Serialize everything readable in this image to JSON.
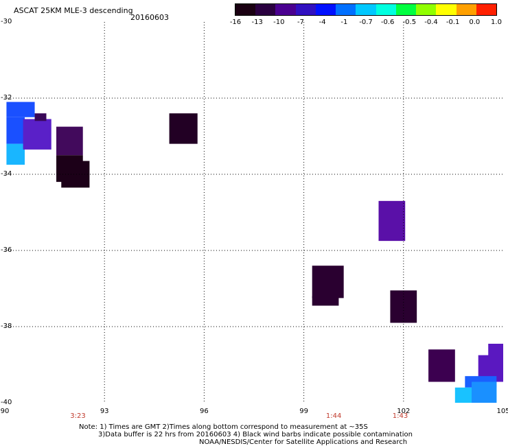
{
  "header": {
    "title": "ASCAT 25KM MLE-3 descending",
    "date": "20160603"
  },
  "colorbar": {
    "ticks": [
      "-16",
      "-13",
      "-10",
      "-7",
      "-4",
      "-1",
      "-0.7",
      "-0.6",
      "-0.5",
      "-0.4",
      "-0.1",
      "0.0",
      "1.0"
    ],
    "colors": [
      "#1a0012",
      "#2a0040",
      "#4a0090",
      "#3010c0",
      "#0010ff",
      "#0070ff",
      "#00c8ff",
      "#00ffe0",
      "#00ff40",
      "#90ff00",
      "#ffff00",
      "#ffa000",
      "#ff2000"
    ]
  },
  "axes": {
    "lat_ticks": [
      "-30",
      "-32",
      "-34",
      "-36",
      "-38",
      "-40"
    ],
    "lon_ticks": [
      "90",
      "93",
      "96",
      "99",
      "102",
      "105"
    ],
    "lat_range": [
      -30,
      -40
    ],
    "lon_range": [
      90,
      105
    ]
  },
  "pass_times": [
    {
      "lon": 92.2,
      "label": "3:23"
    },
    {
      "lon": 99.9,
      "label": "1:44"
    },
    {
      "lon": 101.9,
      "label": "1:43"
    }
  ],
  "notes": {
    "line1": "Note: 1) Times are GMT 2)Times along bottom correspond to measurement at ~35S",
    "line2": "3)Data buffer is 22 hrs from 20160603 4) Black wind barbs indicate possible contamination",
    "line3": "NOAA/NESDIS/Center for Satellite Applications and Research"
  },
  "patches": [
    {
      "lon0": 90.05,
      "lon1": 90.9,
      "lat0": -32.1,
      "lat1": -32.5,
      "color": "#1a50ff"
    },
    {
      "lon0": 90.05,
      "lon1": 90.6,
      "lat0": -32.5,
      "lat1": -33.2,
      "color": "#1a50ff"
    },
    {
      "lon0": 90.05,
      "lon1": 90.6,
      "lat0": -33.2,
      "lat1": -33.75,
      "color": "#19b6ff"
    },
    {
      "lon0": 90.55,
      "lon1": 91.4,
      "lat0": -32.55,
      "lat1": -33.35,
      "color": "#5a20c8"
    },
    {
      "lon0": 90.9,
      "lon1": 91.25,
      "lat0": -32.4,
      "lat1": -32.6,
      "color": "#3a0858"
    },
    {
      "lon0": 91.55,
      "lon1": 92.35,
      "lat0": -32.75,
      "lat1": -33.5,
      "color": "#420a5c"
    },
    {
      "lon0": 91.55,
      "lon1": 92.35,
      "lat0": -33.5,
      "lat1": -34.2,
      "color": "#1c0018"
    },
    {
      "lon0": 91.7,
      "lon1": 92.55,
      "lat0": -33.65,
      "lat1": -34.35,
      "color": "#1c0018"
    },
    {
      "lon0": 94.95,
      "lon1": 95.8,
      "lat0": -32.4,
      "lat1": -33.2,
      "color": "#220024"
    },
    {
      "lon0": 101.25,
      "lon1": 102.05,
      "lat0": -34.7,
      "lat1": -35.75,
      "color": "#5a10a8"
    },
    {
      "lon0": 99.25,
      "lon1": 100.2,
      "lat0": -36.4,
      "lat1": -37.25,
      "color": "#2a0030"
    },
    {
      "lon0": 99.25,
      "lon1": 100.05,
      "lat0": -37.2,
      "lat1": -37.45,
      "color": "#2a0030"
    },
    {
      "lon0": 101.6,
      "lon1": 102.4,
      "lat0": -37.05,
      "lat1": -37.9,
      "color": "#2a0030"
    },
    {
      "lon0": 102.75,
      "lon1": 103.55,
      "lat0": -38.6,
      "lat1": -39.45,
      "color": "#3c0050"
    },
    {
      "lon0": 104.25,
      "lon1": 105.05,
      "lat0": -38.75,
      "lat1": -39.45,
      "color": "#5a18c0"
    },
    {
      "lon0": 104.55,
      "lon1": 105.05,
      "lat0": -38.45,
      "lat1": -38.8,
      "color": "#5a18c0"
    },
    {
      "lon0": 103.85,
      "lon1": 104.8,
      "lat0": -39.3,
      "lat1": -39.6,
      "color": "#1a60ff"
    },
    {
      "lon0": 103.55,
      "lon1": 104.8,
      "lat0": -39.6,
      "lat1": -40.0,
      "color": "#19c2ff"
    },
    {
      "lon0": 104.05,
      "lon1": 104.8,
      "lat0": -39.45,
      "lat1": -40.0,
      "color": "#1a90ff"
    }
  ]
}
